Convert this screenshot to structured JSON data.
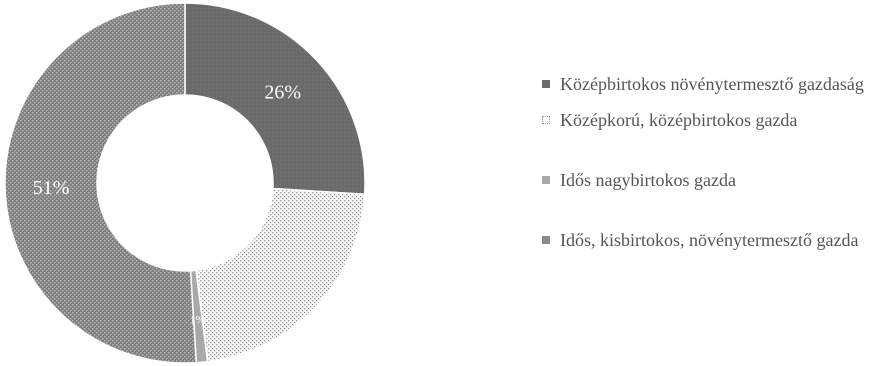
{
  "chart_data": {
    "type": "pie",
    "donut": true,
    "labels": [
      "Középbirtokos növénytermesztő gazdaság",
      "Középkorú, középbirtokos gazda",
      "Idős nagybirtokos gazda",
      "Idős, kisbirtokos, növénytermesztő gazda"
    ],
    "values": [
      26,
      22,
      1,
      51
    ],
    "data_labels": [
      "26%",
      "",
      "1%",
      "51%"
    ],
    "colors": [
      "#6b6b6b",
      "#dcdcdc",
      "#a9a9a9",
      "#8a8a8a"
    ],
    "legend_position": "right"
  },
  "legend": {
    "items": [
      "Középbirtokos növénytermesztő gazdaság",
      "Középkorú, középbirtokos gazda",
      "Idős nagybirtokos gazda",
      "Idős, kisbirtokos, növénytermesztő gazda"
    ]
  }
}
